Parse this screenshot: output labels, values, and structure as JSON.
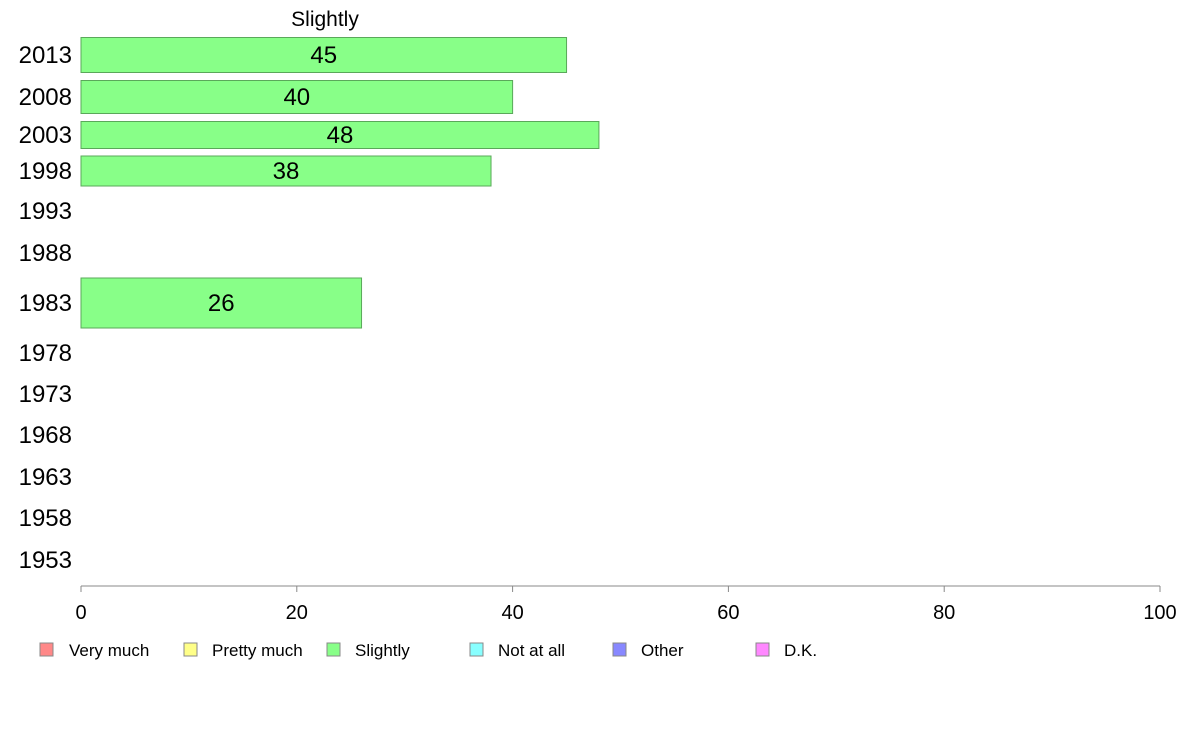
{
  "chart_data": {
    "type": "bar",
    "orientation": "horizontal",
    "title": "Slightly",
    "categories": [
      "2013",
      "2008",
      "2003",
      "1998",
      "1993",
      "1988",
      "1983",
      "1978",
      "1973",
      "1968",
      "1963",
      "1958",
      "1953"
    ],
    "series": [
      {
        "name": "Slightly",
        "color": "#88ff88",
        "values": [
          45,
          40,
          48,
          38,
          null,
          null,
          26,
          null,
          null,
          null,
          null,
          null,
          null
        ]
      }
    ],
    "xlim": [
      0,
      100
    ],
    "xticks": [
      0,
      20,
      40,
      60,
      80,
      100
    ],
    "grid": false,
    "legend_position": "bottom",
    "legend": [
      {
        "label": "Very much",
        "color": "#ff8888"
      },
      {
        "label": "Pretty much",
        "color": "#ffff88"
      },
      {
        "label": "Slightly",
        "color": "#88ff88"
      },
      {
        "label": "Not at all",
        "color": "#88ffff"
      },
      {
        "label": "Other",
        "color": "#8888ff"
      },
      {
        "label": "D.K.",
        "color": "#ff88ff"
      }
    ]
  }
}
